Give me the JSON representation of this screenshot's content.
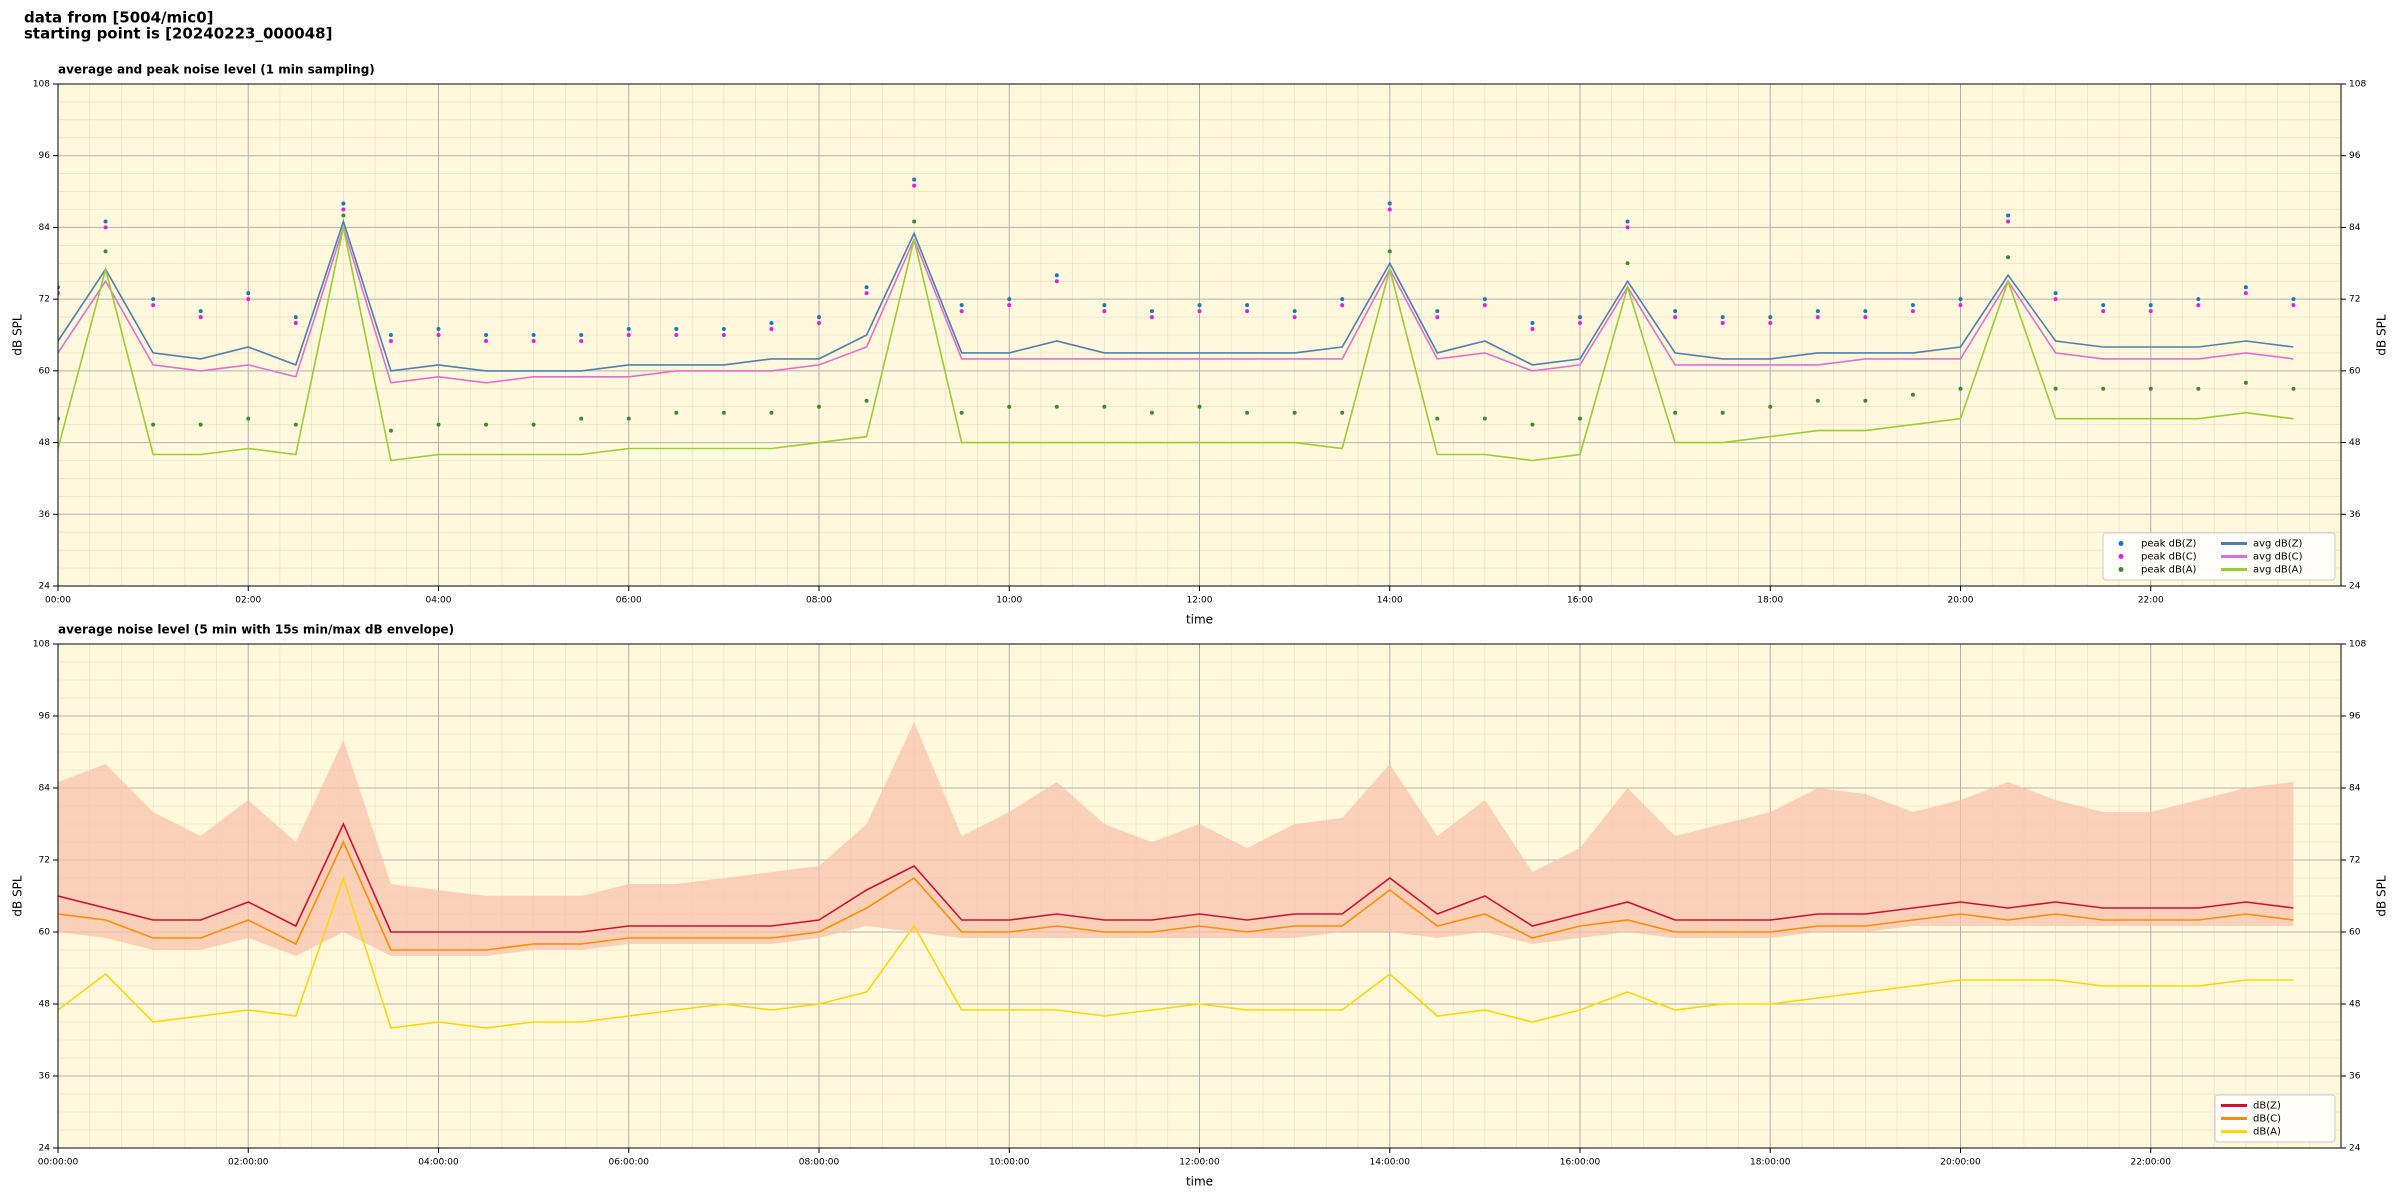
{
  "header": {
    "line1": "data from [5004/mic0]",
    "line2": "starting point is [20240223_000048]"
  },
  "chart_data": [
    {
      "type": "line",
      "title": "average and peak noise level (1 min sampling)",
      "xlabel": "time",
      "ylabel": "dB SPL",
      "x": [
        0,
        0.5,
        1,
        1.5,
        2,
        2.5,
        3,
        3.5,
        4,
        4.5,
        5,
        5.5,
        6,
        6.5,
        7,
        7.5,
        8,
        8.5,
        9,
        9.5,
        10,
        10.5,
        11,
        11.5,
        12,
        12.5,
        13,
        13.5,
        14,
        14.5,
        15,
        15.5,
        16,
        16.5,
        17,
        17.5,
        18,
        18.5,
        19,
        19.5,
        20,
        20.5,
        21,
        21.5,
        22,
        22.5,
        23,
        23.5
      ],
      "xlim": [
        0,
        24
      ],
      "xticks": [
        {
          "value": 0,
          "label": "00:00"
        },
        {
          "value": 2,
          "label": "02:00"
        },
        {
          "value": 4,
          "label": "04:00"
        },
        {
          "value": 6,
          "label": "06:00"
        },
        {
          "value": 8,
          "label": "08:00"
        },
        {
          "value": 10,
          "label": "10:00"
        },
        {
          "value": 12,
          "label": "12:00"
        },
        {
          "value": 14,
          "label": "14:00"
        },
        {
          "value": 16,
          "label": "16:00"
        },
        {
          "value": 18,
          "label": "18:00"
        },
        {
          "value": 20,
          "label": "20:00"
        },
        {
          "value": 22,
          "label": "22:00"
        }
      ],
      "ylim": [
        24,
        108
      ],
      "yticks": [
        24,
        36,
        48,
        60,
        72,
        84,
        96,
        108
      ],
      "grid": true,
      "legend": "lower right",
      "legend_columns": 2,
      "series": [
        {
          "name": "peak dB(Z)",
          "kind": "scatter",
          "color": "#1f77b4",
          "values": [
            74,
            85,
            72,
            70,
            73,
            69,
            88,
            66,
            67,
            66,
            66,
            66,
            67,
            67,
            67,
            68,
            69,
            74,
            92,
            71,
            72,
            76,
            71,
            70,
            71,
            71,
            70,
            72,
            88,
            70,
            72,
            68,
            69,
            85,
            70,
            69,
            69,
            70,
            70,
            71,
            72,
            86,
            73,
            71,
            71,
            72,
            74,
            72
          ]
        },
        {
          "name": "peak dB(C)",
          "kind": "scatter",
          "color": "#e020e0",
          "values": [
            73,
            84,
            71,
            69,
            72,
            68,
            87,
            65,
            66,
            65,
            65,
            65,
            66,
            66,
            66,
            67,
            68,
            73,
            91,
            70,
            71,
            75,
            70,
            69,
            70,
            70,
            69,
            71,
            87,
            69,
            71,
            67,
            68,
            84,
            69,
            68,
            68,
            69,
            69,
            70,
            71,
            85,
            72,
            70,
            70,
            71,
            73,
            71
          ]
        },
        {
          "name": "peak dB(A)",
          "kind": "scatter",
          "color": "#3a8a3a",
          "values": [
            52,
            80,
            51,
            51,
            52,
            51,
            86,
            50,
            51,
            51,
            51,
            52,
            52,
            53,
            53,
            53,
            54,
            55,
            85,
            53,
            54,
            54,
            54,
            53,
            54,
            53,
            53,
            53,
            80,
            52,
            52,
            51,
            52,
            78,
            53,
            53,
            54,
            55,
            55,
            56,
            57,
            79,
            57,
            57,
            57,
            57,
            58,
            57
          ]
        },
        {
          "name": "avg dB(Z)",
          "kind": "line",
          "color": "#4f7fb0",
          "values": [
            65,
            77,
            63,
            62,
            64,
            61,
            85,
            60,
            61,
            60,
            60,
            60,
            61,
            61,
            61,
            62,
            62,
            66,
            83,
            63,
            63,
            65,
            63,
            63,
            63,
            63,
            63,
            64,
            78,
            63,
            65,
            61,
            62,
            75,
            63,
            62,
            62,
            63,
            63,
            63,
            64,
            76,
            65,
            64,
            64,
            64,
            65,
            64
          ]
        },
        {
          "name": "avg dB(C)",
          "kind": "line",
          "color": "#e070d0",
          "values": [
            63,
            75,
            61,
            60,
            61,
            59,
            84,
            58,
            59,
            58,
            59,
            59,
            59,
            60,
            60,
            60,
            61,
            64,
            82,
            62,
            62,
            62,
            62,
            62,
            62,
            62,
            62,
            62,
            77,
            62,
            63,
            60,
            61,
            74,
            61,
            61,
            61,
            61,
            62,
            62,
            62,
            75,
            63,
            62,
            62,
            62,
            63,
            62
          ]
        },
        {
          "name": "avg dB(A)",
          "kind": "line",
          "color": "#9acd32",
          "values": [
            47,
            77,
            46,
            46,
            47,
            46,
            84,
            45,
            46,
            46,
            46,
            46,
            47,
            47,
            47,
            47,
            48,
            49,
            82,
            48,
            48,
            48,
            48,
            48,
            48,
            48,
            48,
            47,
            77,
            46,
            46,
            45,
            46,
            74,
            48,
            48,
            49,
            50,
            50,
            51,
            52,
            75,
            52,
            52,
            52,
            52,
            53,
            52
          ]
        }
      ]
    },
    {
      "type": "line",
      "title": "average noise level (5 min with 15s min/max dB envelope)",
      "xlabel": "time",
      "ylabel": "dB SPL",
      "x": [
        0,
        0.5,
        1,
        1.5,
        2,
        2.5,
        3,
        3.5,
        4,
        4.5,
        5,
        5.5,
        6,
        6.5,
        7,
        7.5,
        8,
        8.5,
        9,
        9.5,
        10,
        10.5,
        11,
        11.5,
        12,
        12.5,
        13,
        13.5,
        14,
        14.5,
        15,
        15.5,
        16,
        16.5,
        17,
        17.5,
        18,
        18.5,
        19,
        19.5,
        20,
        20.5,
        21,
        21.5,
        22,
        22.5,
        23,
        23.5
      ],
      "xlim": [
        0,
        24
      ],
      "xticks": [
        {
          "value": 0,
          "label": "00:00:00"
        },
        {
          "value": 2,
          "label": "02:00:00"
        },
        {
          "value": 4,
          "label": "04:00:00"
        },
        {
          "value": 6,
          "label": "06:00:00"
        },
        {
          "value": 8,
          "label": "08:00:00"
        },
        {
          "value": 10,
          "label": "10:00:00"
        },
        {
          "value": 12,
          "label": "12:00:00"
        },
        {
          "value": 14,
          "label": "14:00:00"
        },
        {
          "value": 16,
          "label": "16:00:00"
        },
        {
          "value": 18,
          "label": "18:00:00"
        },
        {
          "value": 20,
          "label": "20:00:00"
        },
        {
          "value": 22,
          "label": "22:00:00"
        }
      ],
      "ylim": [
        24,
        108
      ],
      "yticks": [
        24,
        36,
        48,
        60,
        72,
        84,
        96,
        108
      ],
      "grid": true,
      "legend": "lower right",
      "legend_columns": 1,
      "envelope": {
        "color": "#f8c0a8",
        "min": [
          60,
          59,
          57,
          57,
          59,
          56,
          60,
          56,
          56,
          56,
          57,
          57,
          58,
          58,
          58,
          58,
          59,
          61,
          60,
          59,
          59,
          59,
          59,
          59,
          59,
          59,
          59,
          60,
          60,
          59,
          60,
          58,
          59,
          60,
          59,
          59,
          59,
          60,
          60,
          61,
          61,
          61,
          61,
          61,
          61,
          61,
          61,
          61
        ],
        "max": [
          85,
          88,
          80,
          76,
          82,
          75,
          92,
          68,
          67,
          66,
          66,
          66,
          68,
          68,
          69,
          70,
          71,
          78,
          95,
          76,
          80,
          85,
          78,
          75,
          78,
          74,
          78,
          79,
          88,
          76,
          82,
          70,
          74,
          84,
          76,
          78,
          80,
          84,
          83,
          80,
          82,
          85,
          82,
          80,
          80,
          82,
          84,
          85
        ]
      },
      "series": [
        {
          "name": "dB(Z)",
          "kind": "line",
          "color": "#d01030",
          "values": [
            66,
            64,
            62,
            62,
            65,
            61,
            78,
            60,
            60,
            60,
            60,
            60,
            61,
            61,
            61,
            61,
            62,
            67,
            71,
            62,
            62,
            63,
            62,
            62,
            63,
            62,
            63,
            63,
            69,
            63,
            66,
            61,
            63,
            65,
            62,
            62,
            62,
            63,
            63,
            64,
            65,
            64,
            65,
            64,
            64,
            64,
            65,
            64
          ]
        },
        {
          "name": "dB(C)",
          "kind": "line",
          "color": "#ff8c00",
          "values": [
            63,
            62,
            59,
            59,
            62,
            58,
            75,
            57,
            57,
            57,
            58,
            58,
            59,
            59,
            59,
            59,
            60,
            64,
            69,
            60,
            60,
            61,
            60,
            60,
            61,
            60,
            61,
            61,
            67,
            61,
            63,
            59,
            61,
            62,
            60,
            60,
            60,
            61,
            61,
            62,
            63,
            62,
            63,
            62,
            62,
            62,
            63,
            62
          ]
        },
        {
          "name": "dB(A)",
          "kind": "line",
          "color": "#ffd700",
          "values": [
            47,
            53,
            45,
            46,
            47,
            46,
            69,
            44,
            45,
            44,
            45,
            45,
            46,
            47,
            48,
            47,
            48,
            50,
            61,
            47,
            47,
            47,
            46,
            47,
            48,
            47,
            47,
            47,
            53,
            46,
            47,
            45,
            47,
            50,
            47,
            48,
            48,
            49,
            50,
            51,
            52,
            52,
            52,
            51,
            51,
            51,
            52,
            52
          ]
        }
      ]
    }
  ]
}
